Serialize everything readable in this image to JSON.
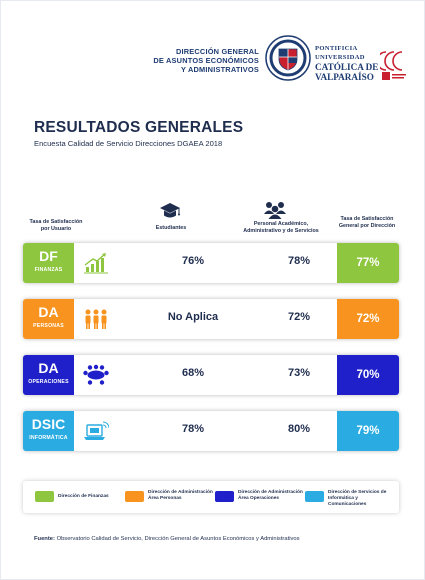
{
  "header": {
    "org_line1": "DIRECCIÓN GENERAL",
    "org_line2": "DE ASUNTOS ECONÓMICOS",
    "org_line3": "Y ADMINISTRATIVOS",
    "uni_line1": "PONTIFICIA",
    "uni_line2": "UNIVERSIDAD",
    "uni_line3": "CATÓLICA DE",
    "uni_line4": "VALPARAÍSO"
  },
  "title": "RESULTADOS GENERALES",
  "subtitle": "Encuesta Calidad de Servicio Direcciones DGAEA 2018",
  "columns": {
    "user_line1": "Tasa de Satisfacción",
    "user_line2": "por Usuario",
    "students": "Estudiantes",
    "staff_line1": "Personal Académico,",
    "staff_line2": "Administrativo y de Servicios",
    "direction_line1": "Tasa de Satisfacción",
    "direction_line2": "General por Dirección"
  },
  "rows": [
    {
      "abbr": "DF",
      "area": "FINANZAS",
      "students": "76%",
      "staff": "78%",
      "total": "77%",
      "color": "#8ec63f",
      "icon": "growth-chart-icon"
    },
    {
      "abbr": "DA",
      "area": "PERSONAS",
      "students": "No Aplica",
      "staff": "72%",
      "total": "72%",
      "color": "#f7931e",
      "icon": "people-group-icon"
    },
    {
      "abbr": "DA",
      "area": "OPERACIONES",
      "students": "68%",
      "staff": "73%",
      "total": "70%",
      "color": "#1f20c9",
      "icon": "meeting-table-icon"
    },
    {
      "abbr": "DSIC",
      "area": "INFORMÁTICA",
      "students": "78%",
      "staff": "80%",
      "total": "79%",
      "color": "#2aabe2",
      "icon": "laptop-wifi-icon"
    }
  ],
  "legend": [
    {
      "line1": "Dirección de Finanzas",
      "line2": "",
      "color": "#8ec63f"
    },
    {
      "line1": "Dirección de Administración",
      "line2": "Área Personas",
      "color": "#f7931e"
    },
    {
      "line1": "Dirección de Administración",
      "line2": "Área Operaciones",
      "color": "#1f20c9"
    },
    {
      "line1": "Dirección de Servicios de",
      "line2": "Informática y Comunicaciones",
      "color": "#2aabe2"
    }
  ],
  "source": {
    "label": "Fuente:",
    "text": "Observatorio Calidad de Servicio, Dirección General de Asuntos Económicos y Administrativos"
  }
}
